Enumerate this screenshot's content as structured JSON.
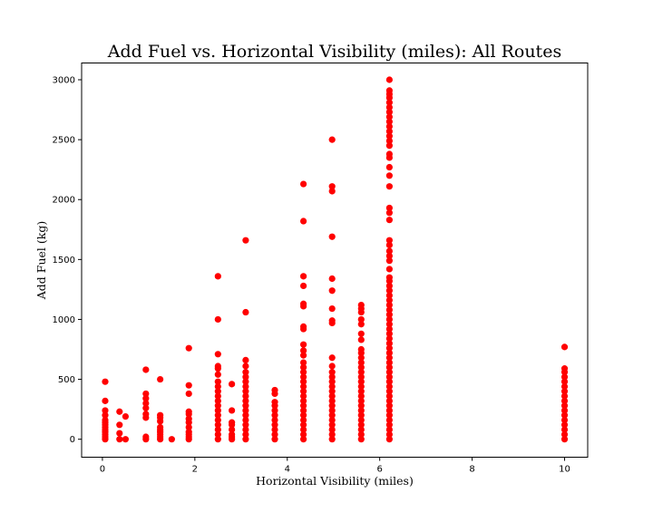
{
  "chart_data": {
    "type": "scatter",
    "title": "Add Fuel vs. Horizontal Visibility (miles): All Routes",
    "xlabel": "Horizontal Visibility (miles)",
    "ylabel": "Add Fuel (kg)",
    "xlim": [
      -0.45,
      10.5
    ],
    "ylim": [
      -150,
      3140
    ],
    "xticks": [
      0,
      2,
      4,
      6,
      8,
      10
    ],
    "xtick_labels": [
      "0",
      "2",
      "4",
      "6",
      "8",
      "10"
    ],
    "yticks": [
      0,
      500,
      1000,
      1500,
      2000,
      2500,
      3000
    ],
    "ytick_labels": [
      "0",
      "500",
      "1000",
      "1500",
      "2000",
      "2500",
      "3000"
    ],
    "grid": false,
    "marker_color": "#ff0000",
    "series": [
      {
        "points": [
          [
            0.06,
            0
          ],
          [
            0.06,
            20
          ],
          [
            0.06,
            40
          ],
          [
            0.06,
            60
          ],
          [
            0.06,
            80
          ],
          [
            0.06,
            100
          ],
          [
            0.06,
            120
          ],
          [
            0.06,
            140
          ],
          [
            0.06,
            160
          ],
          [
            0.06,
            200
          ],
          [
            0.06,
            240
          ],
          [
            0.06,
            320
          ],
          [
            0.06,
            480
          ],
          [
            0.37,
            0
          ],
          [
            0.37,
            50
          ],
          [
            0.37,
            120
          ],
          [
            0.37,
            230
          ],
          [
            0.5,
            0
          ],
          [
            0.5,
            190
          ],
          [
            0.94,
            0
          ],
          [
            0.94,
            20
          ],
          [
            0.94,
            180
          ],
          [
            0.94,
            210
          ],
          [
            0.94,
            260
          ],
          [
            0.94,
            300
          ],
          [
            0.94,
            340
          ],
          [
            0.94,
            380
          ],
          [
            0.94,
            580
          ],
          [
            1.25,
            0
          ],
          [
            1.25,
            20
          ],
          [
            1.25,
            40
          ],
          [
            1.25,
            60
          ],
          [
            1.25,
            80
          ],
          [
            1.25,
            100
          ],
          [
            1.25,
            150
          ],
          [
            1.25,
            180
          ],
          [
            1.25,
            200
          ],
          [
            1.25,
            500
          ],
          [
            1.5,
            0
          ],
          [
            1.87,
            0
          ],
          [
            1.87,
            20
          ],
          [
            1.87,
            40
          ],
          [
            1.87,
            60
          ],
          [
            1.87,
            100
          ],
          [
            1.87,
            140
          ],
          [
            1.87,
            170
          ],
          [
            1.87,
            210
          ],
          [
            1.87,
            230
          ],
          [
            1.87,
            380
          ],
          [
            1.87,
            450
          ],
          [
            1.87,
            760
          ],
          [
            2.5,
            0
          ],
          [
            2.5,
            40
          ],
          [
            2.5,
            80
          ],
          [
            2.5,
            120
          ],
          [
            2.5,
            160
          ],
          [
            2.5,
            200
          ],
          [
            2.5,
            240
          ],
          [
            2.5,
            280
          ],
          [
            2.5,
            320
          ],
          [
            2.5,
            360
          ],
          [
            2.5,
            400
          ],
          [
            2.5,
            440
          ],
          [
            2.5,
            480
          ],
          [
            2.5,
            540
          ],
          [
            2.5,
            590
          ],
          [
            2.5,
            610
          ],
          [
            2.5,
            710
          ],
          [
            2.5,
            1000
          ],
          [
            2.5,
            1360
          ],
          [
            2.8,
            0
          ],
          [
            2.8,
            20
          ],
          [
            2.8,
            40
          ],
          [
            2.8,
            80
          ],
          [
            2.8,
            120
          ],
          [
            2.8,
            140
          ],
          [
            2.8,
            240
          ],
          [
            2.8,
            460
          ],
          [
            3.1,
            0
          ],
          [
            3.1,
            40
          ],
          [
            3.1,
            80
          ],
          [
            3.1,
            120
          ],
          [
            3.1,
            160
          ],
          [
            3.1,
            200
          ],
          [
            3.1,
            240
          ],
          [
            3.1,
            280
          ],
          [
            3.1,
            320
          ],
          [
            3.1,
            360
          ],
          [
            3.1,
            400
          ],
          [
            3.1,
            440
          ],
          [
            3.1,
            480
          ],
          [
            3.1,
            520
          ],
          [
            3.1,
            560
          ],
          [
            3.1,
            610
          ],
          [
            3.1,
            660
          ],
          [
            3.1,
            1060
          ],
          [
            3.1,
            1660
          ],
          [
            3.73,
            0
          ],
          [
            3.73,
            40
          ],
          [
            3.73,
            80
          ],
          [
            3.73,
            120
          ],
          [
            3.73,
            160
          ],
          [
            3.73,
            200
          ],
          [
            3.73,
            240
          ],
          [
            3.73,
            280
          ],
          [
            3.73,
            310
          ],
          [
            3.73,
            380
          ],
          [
            3.73,
            410
          ],
          [
            4.35,
            0
          ],
          [
            4.35,
            40
          ],
          [
            4.35,
            80
          ],
          [
            4.35,
            120
          ],
          [
            4.35,
            160
          ],
          [
            4.35,
            200
          ],
          [
            4.35,
            240
          ],
          [
            4.35,
            280
          ],
          [
            4.35,
            320
          ],
          [
            4.35,
            360
          ],
          [
            4.35,
            400
          ],
          [
            4.35,
            440
          ],
          [
            4.35,
            480
          ],
          [
            4.35,
            520
          ],
          [
            4.35,
            560
          ],
          [
            4.35,
            600
          ],
          [
            4.35,
            640
          ],
          [
            4.35,
            700
          ],
          [
            4.35,
            740
          ],
          [
            4.35,
            790
          ],
          [
            4.35,
            920
          ],
          [
            4.35,
            940
          ],
          [
            4.35,
            1110
          ],
          [
            4.35,
            1130
          ],
          [
            4.35,
            1280
          ],
          [
            4.35,
            1360
          ],
          [
            4.35,
            1820
          ],
          [
            4.35,
            2130
          ],
          [
            4.97,
            0
          ],
          [
            4.97,
            40
          ],
          [
            4.97,
            80
          ],
          [
            4.97,
            120
          ],
          [
            4.97,
            160
          ],
          [
            4.97,
            200
          ],
          [
            4.97,
            240
          ],
          [
            4.97,
            280
          ],
          [
            4.97,
            320
          ],
          [
            4.97,
            360
          ],
          [
            4.97,
            400
          ],
          [
            4.97,
            440
          ],
          [
            4.97,
            480
          ],
          [
            4.97,
            520
          ],
          [
            4.97,
            560
          ],
          [
            4.97,
            610
          ],
          [
            4.97,
            680
          ],
          [
            4.97,
            970
          ],
          [
            4.97,
            990
          ],
          [
            4.97,
            1090
          ],
          [
            4.97,
            1240
          ],
          [
            4.97,
            1340
          ],
          [
            4.97,
            1690
          ],
          [
            4.97,
            2070
          ],
          [
            4.97,
            2110
          ],
          [
            4.97,
            2500
          ],
          [
            5.6,
            0
          ],
          [
            5.6,
            40
          ],
          [
            5.6,
            80
          ],
          [
            5.6,
            120
          ],
          [
            5.6,
            160
          ],
          [
            5.6,
            200
          ],
          [
            5.6,
            240
          ],
          [
            5.6,
            280
          ],
          [
            5.6,
            320
          ],
          [
            5.6,
            360
          ],
          [
            5.6,
            400
          ],
          [
            5.6,
            440
          ],
          [
            5.6,
            480
          ],
          [
            5.6,
            520
          ],
          [
            5.6,
            560
          ],
          [
            5.6,
            600
          ],
          [
            5.6,
            640
          ],
          [
            5.6,
            680
          ],
          [
            5.6,
            720
          ],
          [
            5.6,
            750
          ],
          [
            5.6,
            830
          ],
          [
            5.6,
            880
          ],
          [
            5.6,
            960
          ],
          [
            5.6,
            1000
          ],
          [
            5.6,
            1060
          ],
          [
            5.6,
            1090
          ],
          [
            5.6,
            1120
          ],
          [
            6.21,
            0
          ],
          [
            6.21,
            40
          ],
          [
            6.21,
            80
          ],
          [
            6.21,
            120
          ],
          [
            6.21,
            160
          ],
          [
            6.21,
            200
          ],
          [
            6.21,
            240
          ],
          [
            6.21,
            280
          ],
          [
            6.21,
            320
          ],
          [
            6.21,
            360
          ],
          [
            6.21,
            400
          ],
          [
            6.21,
            440
          ],
          [
            6.21,
            480
          ],
          [
            6.21,
            520
          ],
          [
            6.21,
            560
          ],
          [
            6.21,
            600
          ],
          [
            6.21,
            640
          ],
          [
            6.21,
            680
          ],
          [
            6.21,
            720
          ],
          [
            6.21,
            760
          ],
          [
            6.21,
            800
          ],
          [
            6.21,
            840
          ],
          [
            6.21,
            880
          ],
          [
            6.21,
            920
          ],
          [
            6.21,
            960
          ],
          [
            6.21,
            1000
          ],
          [
            6.21,
            1040
          ],
          [
            6.21,
            1080
          ],
          [
            6.21,
            1120
          ],
          [
            6.21,
            1160
          ],
          [
            6.21,
            1200
          ],
          [
            6.21,
            1240
          ],
          [
            6.21,
            1280
          ],
          [
            6.21,
            1320
          ],
          [
            6.21,
            1350
          ],
          [
            6.21,
            1420
          ],
          [
            6.21,
            1490
          ],
          [
            6.21,
            1530
          ],
          [
            6.21,
            1570
          ],
          [
            6.21,
            1620
          ],
          [
            6.21,
            1660
          ],
          [
            6.21,
            1830
          ],
          [
            6.21,
            1890
          ],
          [
            6.21,
            1930
          ],
          [
            6.21,
            2110
          ],
          [
            6.21,
            2200
          ],
          [
            6.21,
            2270
          ],
          [
            6.21,
            2350
          ],
          [
            6.21,
            2380
          ],
          [
            6.21,
            2450
          ],
          [
            6.21,
            2490
          ],
          [
            6.21,
            2530
          ],
          [
            6.21,
            2570
          ],
          [
            6.21,
            2610
          ],
          [
            6.21,
            2650
          ],
          [
            6.21,
            2690
          ],
          [
            6.21,
            2730
          ],
          [
            6.21,
            2770
          ],
          [
            6.21,
            2810
          ],
          [
            6.21,
            2850
          ],
          [
            6.21,
            2880
          ],
          [
            6.21,
            2910
          ],
          [
            6.21,
            3000
          ],
          [
            10.0,
            0
          ],
          [
            10.0,
            40
          ],
          [
            10.0,
            80
          ],
          [
            10.0,
            120
          ],
          [
            10.0,
            160
          ],
          [
            10.0,
            200
          ],
          [
            10.0,
            240
          ],
          [
            10.0,
            280
          ],
          [
            10.0,
            320
          ],
          [
            10.0,
            360
          ],
          [
            10.0,
            400
          ],
          [
            10.0,
            440
          ],
          [
            10.0,
            480
          ],
          [
            10.0,
            520
          ],
          [
            10.0,
            560
          ],
          [
            10.0,
            590
          ],
          [
            10.0,
            770
          ]
        ]
      }
    ]
  }
}
